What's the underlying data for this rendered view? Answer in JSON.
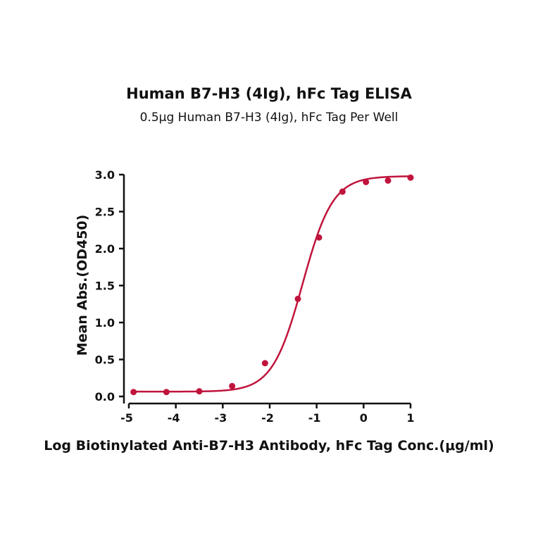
{
  "chart_data": {
    "type": "scatter",
    "title": "Human B7-H3 (4Ig), hFc Tag ELISA",
    "subtitle": "0.5μg Human B7-H3 (4Ig), hFc Tag Per Well",
    "xlabel": "Log Biotinylated Anti-B7-H3 Antibody, hFc Tag Conc.(μg/ml)",
    "ylabel": "Mean Abs.(OD450)",
    "xlim": [
      -5,
      1
    ],
    "ylim": [
      0,
      3
    ],
    "xticks": [
      "-5",
      "-4",
      "-3",
      "-2",
      "-1",
      "0",
      "1"
    ],
    "yticks": [
      "0.0",
      "0.5",
      "1.0",
      "1.5",
      "2.0",
      "2.5",
      "3.0"
    ],
    "grid": false,
    "series": [
      {
        "color": "#c0143c",
        "points": [
          {
            "x": -4.9,
            "y": 0.06
          },
          {
            "x": -4.2,
            "y": 0.06
          },
          {
            "x": -3.5,
            "y": 0.07
          },
          {
            "x": -2.8,
            "y": 0.14
          },
          {
            "x": -2.1,
            "y": 0.45
          },
          {
            "x": -1.4,
            "y": 1.32
          },
          {
            "x": -0.95,
            "y": 2.15
          },
          {
            "x": -0.45,
            "y": 2.77
          },
          {
            "x": 0.05,
            "y": 2.9
          },
          {
            "x": 0.52,
            "y": 2.92
          },
          {
            "x": 1.0,
            "y": 2.96
          }
        ],
        "fit": {
          "model": "4PL",
          "bottom": 0.065,
          "top": 2.98,
          "log_ec50": -1.3,
          "hill": 1.35
        }
      }
    ]
  }
}
